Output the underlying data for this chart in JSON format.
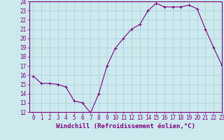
{
  "x": [
    0,
    1,
    2,
    3,
    4,
    5,
    6,
    7,
    8,
    9,
    10,
    11,
    12,
    13,
    14,
    15,
    16,
    17,
    18,
    19,
    20,
    21,
    22,
    23
  ],
  "y": [
    15.9,
    15.1,
    15.1,
    15.0,
    14.7,
    13.2,
    13.0,
    11.9,
    14.0,
    17.0,
    18.9,
    20.0,
    21.0,
    21.5,
    23.0,
    23.8,
    23.4,
    23.4,
    23.4,
    23.6,
    23.2,
    21.0,
    19.0,
    17.1
  ],
  "line_color": "#800080",
  "marker": "+",
  "marker_size": 3,
  "background_color": "#cce9ee",
  "grid_color": "#aacdd4",
  "xlabel": "Windchill (Refroidissement éolien,°C)",
  "ylim": [
    12,
    24
  ],
  "xlim": [
    -0.5,
    23
  ],
  "yticks": [
    12,
    13,
    14,
    15,
    16,
    17,
    18,
    19,
    20,
    21,
    22,
    23,
    24
  ],
  "xticks": [
    0,
    1,
    2,
    3,
    4,
    5,
    6,
    7,
    8,
    9,
    10,
    11,
    12,
    13,
    14,
    15,
    16,
    17,
    18,
    19,
    20,
    21,
    22,
    23
  ],
  "tick_fontsize": 5.5,
  "xlabel_fontsize": 6.5,
  "axis_color": "#800080",
  "spine_color": "#800080"
}
